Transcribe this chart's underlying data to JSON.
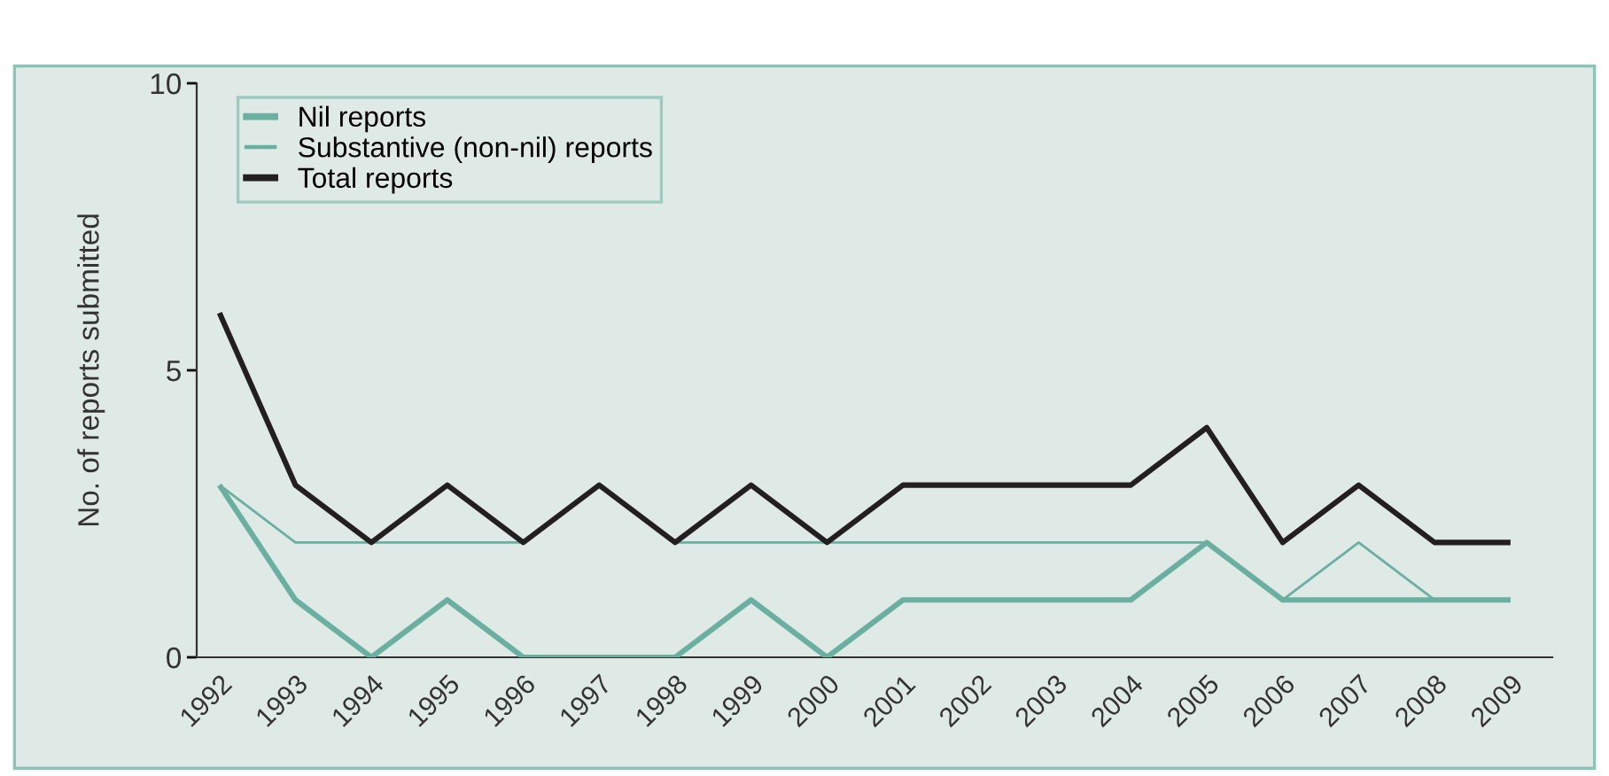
{
  "chart_data": {
    "type": "line",
    "ylabel": "No. of reports submitted",
    "categories": [
      "1992",
      "1993",
      "1994",
      "1995",
      "1996",
      "1997",
      "1998",
      "1999",
      "2000",
      "2001",
      "2002",
      "2003",
      "2004",
      "2005",
      "2006",
      "2007",
      "2008",
      "2009"
    ],
    "series": [
      {
        "name": "Nil reports",
        "color": "#6aafa0",
        "values": [
          3,
          1,
          0,
          1,
          0,
          0,
          0,
          1,
          0,
          1,
          1,
          1,
          1,
          2,
          1,
          1,
          1,
          1
        ]
      },
      {
        "name": "Substantive (non-nil) reports",
        "color": "#6aafa0",
        "values": [
          3,
          2,
          2,
          2,
          2,
          3,
          2,
          2,
          2,
          2,
          2,
          2,
          2,
          2,
          1,
          2,
          1,
          1
        ]
      },
      {
        "name": "Total reports",
        "color": "#231f20",
        "values": [
          6,
          3,
          2,
          3,
          2,
          3,
          2,
          3,
          2,
          3,
          3,
          3,
          3,
          4,
          2,
          3,
          2,
          2
        ]
      }
    ],
    "ylim": [
      0,
      10
    ],
    "yticks": [
      0,
      5,
      10
    ],
    "grid": false,
    "legend": "top left",
    "marker": "none",
    "line_style": "solid"
  }
}
